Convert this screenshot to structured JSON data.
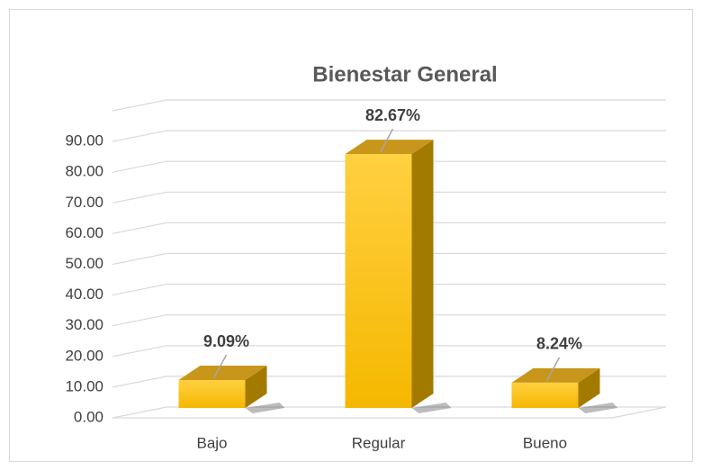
{
  "chart_data": {
    "type": "bar3d",
    "title": "Bienestar General",
    "categories": [
      "Bajo",
      "Regular",
      "Bueno"
    ],
    "values": [
      9.09,
      82.67,
      8.24
    ],
    "value_labels": [
      "9.09%",
      "82.67%",
      "8.24%"
    ],
    "color": "#ffc000",
    "ylim": [
      0,
      100
    ],
    "yticks": [
      {
        "value": 0,
        "label": "0.00"
      },
      {
        "value": 10,
        "label": "10.00"
      },
      {
        "value": 20,
        "label": "20.00"
      },
      {
        "value": 30,
        "label": "30.00"
      },
      {
        "value": 40,
        "label": "40.00"
      },
      {
        "value": 50,
        "label": "50.00"
      },
      {
        "value": 60,
        "label": "60.00"
      },
      {
        "value": 70,
        "label": "70.00"
      },
      {
        "value": 80,
        "label": "80.00"
      },
      {
        "value": 90,
        "label": "90.00"
      }
    ],
    "grid": true
  }
}
